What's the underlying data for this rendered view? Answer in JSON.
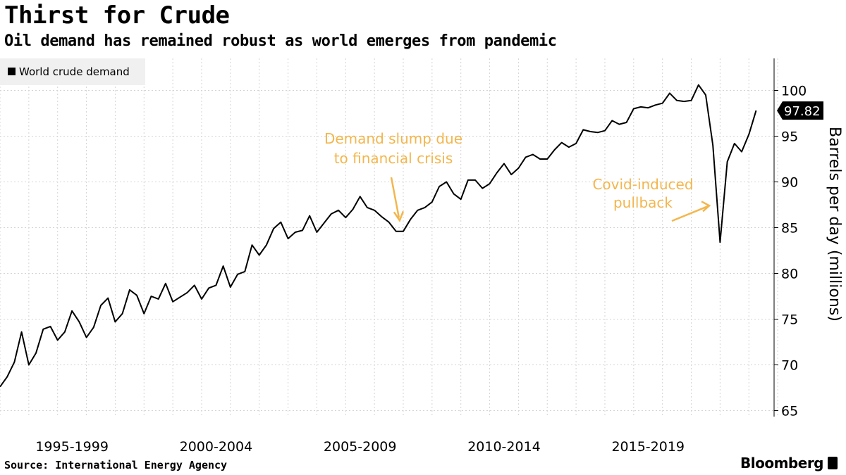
{
  "header": {
    "title": "Thirst for Crude",
    "subtitle": "Oil demand has remained robust as world emerges from pandemic"
  },
  "footer": {
    "source": "Source: International Energy Agency",
    "brand": "Bloomberg"
  },
  "colors": {
    "line": "#000000",
    "annotation": "#f3b64d",
    "grid": "#d4d4d4",
    "legend_bg": "#f0f0f0",
    "plot_bg": "#ffffff"
  },
  "chart_data": {
    "type": "line",
    "title": "Thirst for Crude",
    "subtitle": "Oil demand has remained robust as world emerges from pandemic",
    "xlabel": "",
    "ylabel": "Barrels per day (millions)",
    "ylim": [
      64.5,
      103.5
    ],
    "y_ticks": [
      65,
      70,
      75,
      80,
      85,
      90,
      95,
      100
    ],
    "y_axis_side": "right",
    "grid": true,
    "legend": {
      "position": "top-left",
      "entries": [
        "World crude demand"
      ]
    },
    "x_tick_labels": [
      {
        "label": "1995-1999",
        "at": 10
      },
      {
        "label": "2000-2004",
        "at": 30
      },
      {
        "label": "2005-2009",
        "at": 50
      },
      {
        "label": "2010-2014",
        "at": 70
      },
      {
        "label": "2015-2019",
        "at": 90
      }
    ],
    "x_range": [
      0,
      107.5
    ],
    "series": [
      {
        "name": "World crude demand",
        "start": "1995 Q1",
        "frequency": "quarterly",
        "values": [
          67.6,
          68.7,
          70.3,
          73.6,
          70.0,
          71.3,
          73.9,
          74.2,
          72.7,
          73.6,
          75.9,
          74.7,
          73.0,
          74.1,
          76.5,
          77.3,
          74.7,
          75.6,
          78.2,
          77.6,
          75.6,
          77.5,
          77.2,
          78.9,
          76.9,
          77.4,
          77.9,
          78.7,
          77.2,
          78.4,
          78.7,
          80.8,
          78.5,
          79.9,
          80.2,
          83.1,
          82.0,
          83.1,
          84.9,
          85.6,
          83.8,
          84.5,
          84.7,
          86.3,
          84.5,
          85.5,
          86.5,
          86.9,
          86.1,
          87.0,
          88.4,
          87.2,
          86.9,
          86.2,
          85.6,
          84.6,
          84.6,
          85.9,
          86.9,
          87.2,
          87.8,
          89.5,
          90.0,
          88.7,
          88.1,
          90.2,
          90.2,
          89.3,
          89.8,
          91.0,
          92.0,
          90.8,
          91.5,
          92.7,
          93.0,
          92.5,
          92.5,
          93.5,
          94.3,
          93.8,
          94.2,
          95.7,
          95.5,
          95.4,
          95.6,
          96.7,
          96.3,
          96.5,
          98.0,
          98.2,
          98.1,
          98.4,
          98.6,
          99.7,
          98.9,
          98.8,
          98.9,
          100.6,
          99.5,
          94.0,
          83.4,
          92.2,
          94.2,
          93.3,
          95.2,
          97.8
        ]
      }
    ],
    "last_value_label": "97.82",
    "annotations": [
      {
        "lines": [
          "Demand slump due",
          "to financial crisis"
        ],
        "points_to": {
          "x": 55.5,
          "y": 86.4
        }
      },
      {
        "lines": [
          "Covid-induced",
          "pullback"
        ],
        "points_to": {
          "x": 98.5,
          "y": 87.4
        }
      }
    ]
  }
}
